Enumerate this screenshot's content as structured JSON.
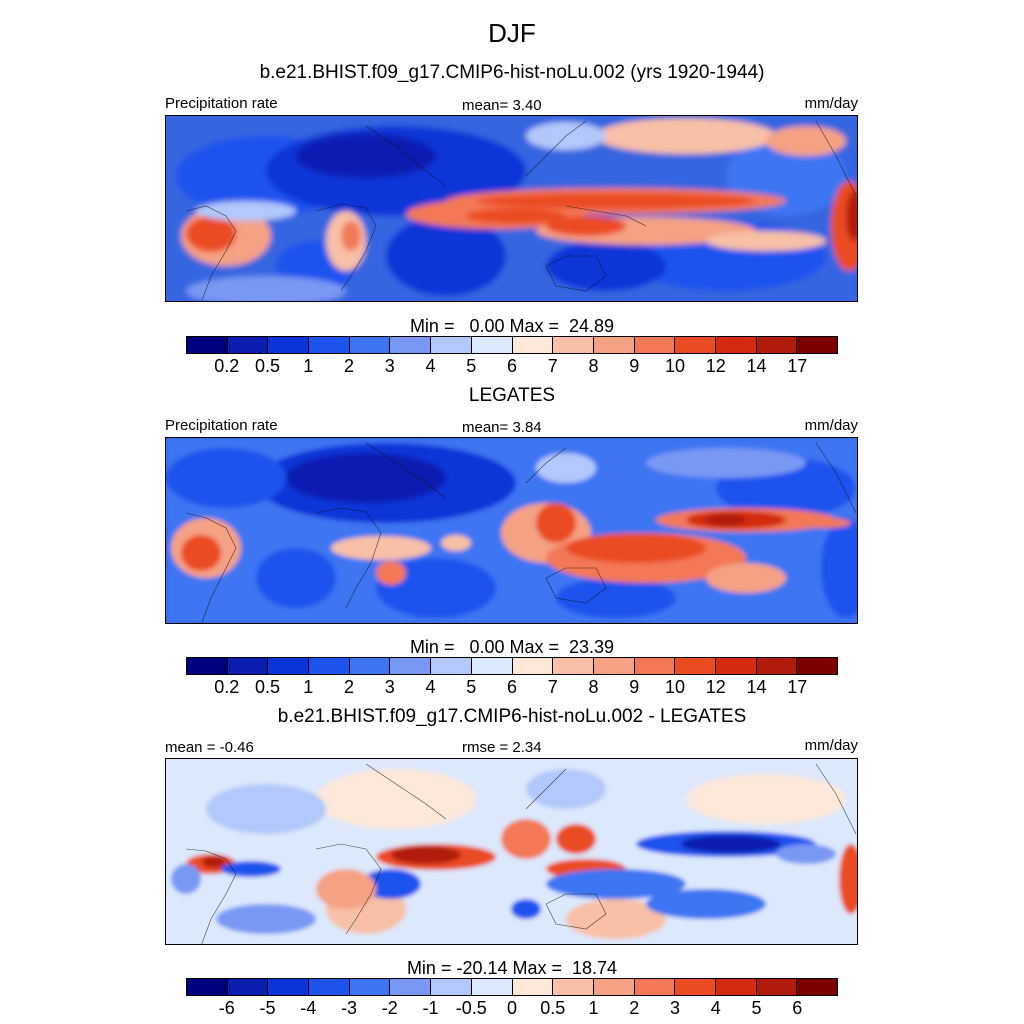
{
  "season": "DJF",
  "panels": [
    {
      "title": "b.e21.BHIST.f09_g17.CMIP6-hist-noLu.002 (yrs 1920-1944)",
      "left_label": "Precipitation rate",
      "center_label": "mean=   3.40",
      "units": "mm/day",
      "minmax": "Min =   0.00 Max =  24.89"
    },
    {
      "title": "LEGATES",
      "left_label": "Precipitation rate",
      "center_label": "mean=   3.84",
      "units": "mm/day",
      "minmax": "Min =   0.00 Max =  23.39"
    },
    {
      "title": "b.e21.BHIST.f09_g17.CMIP6-hist-noLu.002 - LEGATES",
      "left_label": "mean =  -0.46",
      "center_label": "rmse =   2.34",
      "units": "mm/day",
      "minmax": "Min = -20.14 Max =  18.74"
    }
  ],
  "colorbar_precip": {
    "colors": [
      "#00007f",
      "#0a1fb0",
      "#0b34d8",
      "#1e53ee",
      "#3c74f2",
      "#7898f4",
      "#b2c8fa",
      "#dce8fc",
      "#fde8d9",
      "#f8c0a6",
      "#f5a184",
      "#f37856",
      "#eb4b22",
      "#d42a10",
      "#b11b0c",
      "#7c0000"
    ],
    "labels": [
      "0.2",
      "0.5",
      "1",
      "2",
      "3",
      "4",
      "5",
      "6",
      "7",
      "8",
      "9",
      "10",
      "12",
      "14",
      "17"
    ]
  },
  "colorbar_diff": {
    "colors": [
      "#00007f",
      "#0a1fb0",
      "#0b34d8",
      "#1e53ee",
      "#3c74f2",
      "#7898f4",
      "#b2c8fa",
      "#dce8fc",
      "#fde8d9",
      "#f8c0a6",
      "#f5a184",
      "#f37856",
      "#eb4b22",
      "#d42a10",
      "#b11b0c",
      "#7c0000"
    ],
    "labels": [
      "-6",
      "-5",
      "-4",
      "-3",
      "-2",
      "-1",
      "-0.5",
      "0",
      "0.5",
      "1",
      "2",
      "3",
      "4",
      "5",
      "6"
    ]
  }
}
